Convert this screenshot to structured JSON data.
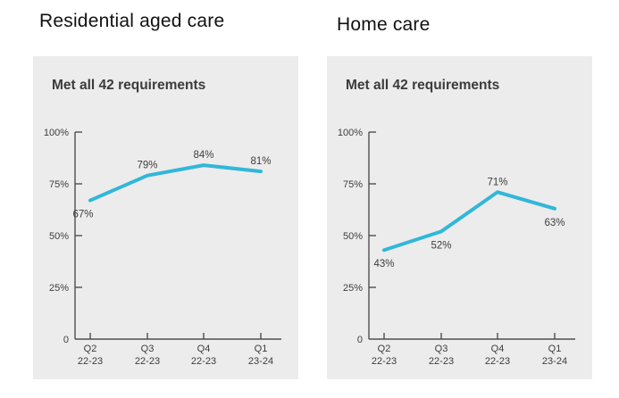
{
  "colors": {
    "panel_bg": "#ececec",
    "line": "#31b7d9",
    "axis": "#4f4f4f",
    "tick_text": "#3d3d3d",
    "data_label_text": "#3d3d3d",
    "header_text": "#3b3b3b",
    "title_text": "#111111"
  },
  "chart_data": [
    {
      "type": "line",
      "title": "Residential aged care",
      "subtitle": "Met all 42 requirements",
      "categories": [
        [
          "Q2",
          "22-23"
        ],
        [
          "Q3",
          "22-23"
        ],
        [
          "Q4",
          "22-23"
        ],
        [
          "Q1",
          "23-24"
        ]
      ],
      "values": [
        67,
        79,
        84,
        81
      ],
      "data_labels": [
        "67%",
        "79%",
        "84%",
        "81%"
      ],
      "label_positions": [
        "below-left",
        "above",
        "above",
        "above"
      ],
      "y_ticks": [
        {
          "label": "100%",
          "value": 100
        },
        {
          "label": "75%",
          "value": 75
        },
        {
          "label": "50%",
          "value": 50
        },
        {
          "label": "25%",
          "value": 25
        },
        {
          "label": "0",
          "value": 0
        }
      ],
      "ylim": [
        0,
        100
      ],
      "grid": false,
      "legend": "none"
    },
    {
      "type": "line",
      "title": "Home care",
      "subtitle": "Met all 42 requirements",
      "categories": [
        [
          "Q2",
          "22-23"
        ],
        [
          "Q3",
          "22-23"
        ],
        [
          "Q4",
          "22-23"
        ],
        [
          "Q1",
          "23-24"
        ]
      ],
      "values": [
        43,
        52,
        71,
        63
      ],
      "data_labels": [
        "43%",
        "52%",
        "71%",
        "63%"
      ],
      "label_positions": [
        "below",
        "below",
        "above",
        "below"
      ],
      "y_ticks": [
        {
          "label": "100%",
          "value": 100
        },
        {
          "label": "75%",
          "value": 75
        },
        {
          "label": "50%",
          "value": 50
        },
        {
          "label": "25%",
          "value": 25
        },
        {
          "label": "0",
          "value": 0
        }
      ],
      "ylim": [
        0,
        100
      ],
      "grid": false,
      "legend": "none"
    }
  ]
}
